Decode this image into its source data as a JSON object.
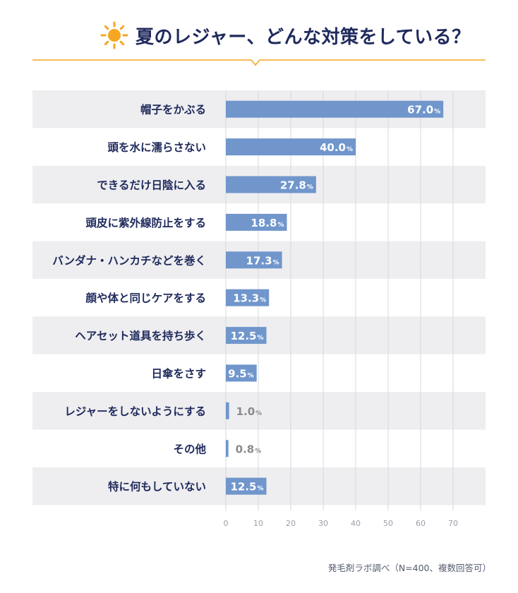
{
  "title": "夏のレジャー、どんな対策をしている？",
  "source": "発毛剤ラボ調べ（N=400、複数回答可）",
  "icon": "sun-icon",
  "colors": {
    "bar": "#7096cc",
    "row_stripe": "#eeeef0",
    "label_text": "#1f2a5c",
    "accent": "#f5a623",
    "value_in_bar": "#ffffff",
    "value_outside": "#8a8a8a",
    "grid": "#d5d8dd",
    "tick": "#9a9ea6"
  },
  "chart_data": {
    "type": "bar",
    "orientation": "horizontal",
    "categories": [
      "帽子をかぶる",
      "頭を水に濡らさない",
      "できるだけ日陰に入る",
      "頭皮に紫外線防止をする",
      "バンダナ・ハンカチなどを巻く",
      "顔や体と同じケアをする",
      "ヘアセット道具を持ち歩く",
      "日傘をさす",
      "レジャーをしないようにする",
      "その他",
      "特に何もしていない"
    ],
    "values": [
      67.0,
      40.0,
      27.8,
      18.8,
      17.3,
      13.3,
      12.5,
      9.5,
      1.0,
      0.8,
      12.5
    ],
    "value_labels": [
      "67.0",
      "40.0",
      "27.8",
      "18.8",
      "17.3",
      "13.3",
      "12.5",
      "9.5",
      "1.0",
      "0.8",
      "12.5"
    ],
    "unit": "%",
    "xlim": [
      0,
      70
    ],
    "xticks": [
      "0",
      "10",
      "20",
      "30",
      "40",
      "50",
      "60",
      "70"
    ],
    "grid": true
  }
}
